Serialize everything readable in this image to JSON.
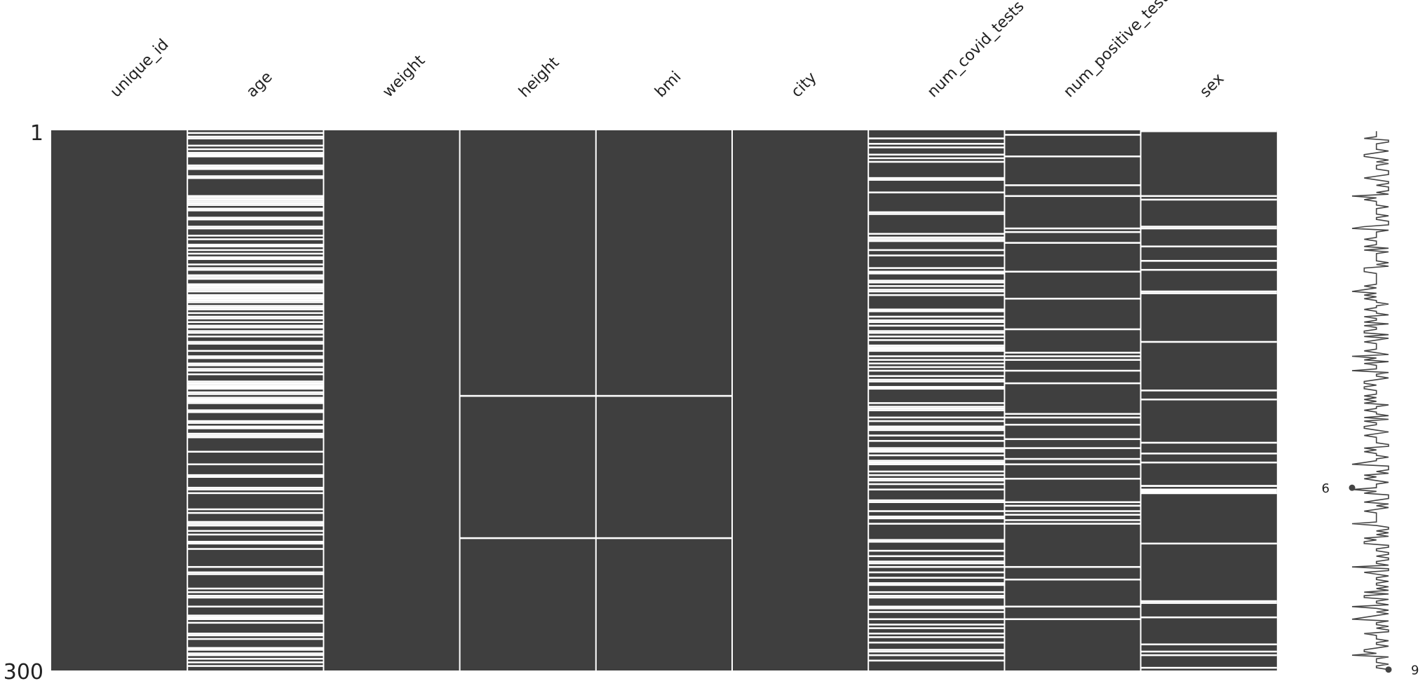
{
  "chart_data": {
    "type": "heatmap",
    "columns": [
      "unique_id",
      "age",
      "weight",
      "height",
      "bmi",
      "city",
      "num_covid_tests",
      "num_positive_tests",
      "sex"
    ],
    "n_rows": 300,
    "row_tick_labels": [
      "1",
      "300"
    ],
    "colors": {
      "present": "#3f3f3f",
      "missing": "#ffffff"
    },
    "missing_rows": {
      "unique_id": [],
      "age": [
        1,
        3,
        4,
        8,
        10,
        12,
        13,
        14,
        19,
        20,
        21,
        25,
        26,
        36,
        37,
        38,
        39,
        40,
        41,
        43,
        44,
        48,
        49,
        53,
        54,
        58,
        60,
        63,
        64,
        66,
        68,
        70,
        71,
        74,
        76,
        77,
        80,
        81,
        82,
        85,
        86,
        87,
        88,
        89,
        91,
        92,
        93,
        94,
        95,
        97,
        98,
        99,
        101,
        103,
        104,
        106,
        108,
        109,
        111,
        112,
        114,
        117,
        118,
        122,
        125,
        126,
        129,
        130,
        132,
        133,
        135,
        139,
        140,
        141,
        142,
        143,
        145,
        146,
        148,
        149,
        150,
        151,
        155,
        156,
        161,
        162,
        164,
        165,
        168,
        169,
        170,
        178,
        185,
        191,
        192,
        198,
        199,
        201,
        210,
        212,
        217,
        218,
        219,
        222,
        224,
        228,
        229,
        232,
        242,
        245,
        246,
        254,
        256,
        258,
        259,
        264,
        269,
        270,
        271,
        273,
        279,
        280,
        282,
        287,
        288,
        290,
        291,
        293,
        295,
        297
      ],
      "weight": [],
      "height": [
        147,
        226
      ],
      "bmi": [
        147,
        226
      ],
      "city": [],
      "num_covid_tests": [
        4,
        7,
        9,
        13,
        15,
        17,
        26,
        27,
        34,
        45,
        46,
        57,
        59,
        60,
        61,
        66,
        69,
        76,
        78,
        79,
        83,
        84,
        86,
        88,
        89,
        91,
        99,
        100,
        103,
        105,
        106,
        108,
        111,
        112,
        114,
        116,
        119,
        120,
        121,
        122,
        125,
        127,
        129,
        131,
        133,
        136,
        138,
        139,
        142,
        143,
        151,
        153,
        154,
        155,
        159,
        161,
        164,
        165,
        166,
        169,
        172,
        176,
        177,
        178,
        180,
        183,
        184,
        185,
        189,
        191,
        193,
        194,
        196,
        199,
        205,
        206,
        211,
        214,
        215,
        218,
        227,
        228,
        233,
        236,
        239,
        240,
        242,
        245,
        248,
        251,
        252,
        256,
        258,
        259,
        264,
        265,
        267,
        271,
        274,
        276,
        279,
        281,
        284,
        288,
        289,
        291,
        294
      ],
      "num_positive_tests": [
        2,
        14,
        30,
        36,
        54,
        56,
        62,
        78,
        93,
        110,
        123,
        125,
        127,
        133,
        140,
        157,
        159,
        163,
        171,
        176,
        182,
        185,
        193,
        206,
        208,
        211,
        213,
        216,
        218,
        242,
        249,
        264,
        271
      ],
      "sex": [
        0,
        36,
        38,
        53,
        54,
        64,
        72,
        77,
        89,
        90,
        117,
        144,
        149,
        173,
        179,
        184,
        197,
        197,
        199,
        200,
        201,
        201,
        229,
        261,
        262,
        270,
        285,
        289,
        291,
        298
      ]
    },
    "sparkline_min": {
      "value": 6,
      "row": 198
    },
    "sparkline_max": {
      "value": 9,
      "row": 299
    }
  }
}
